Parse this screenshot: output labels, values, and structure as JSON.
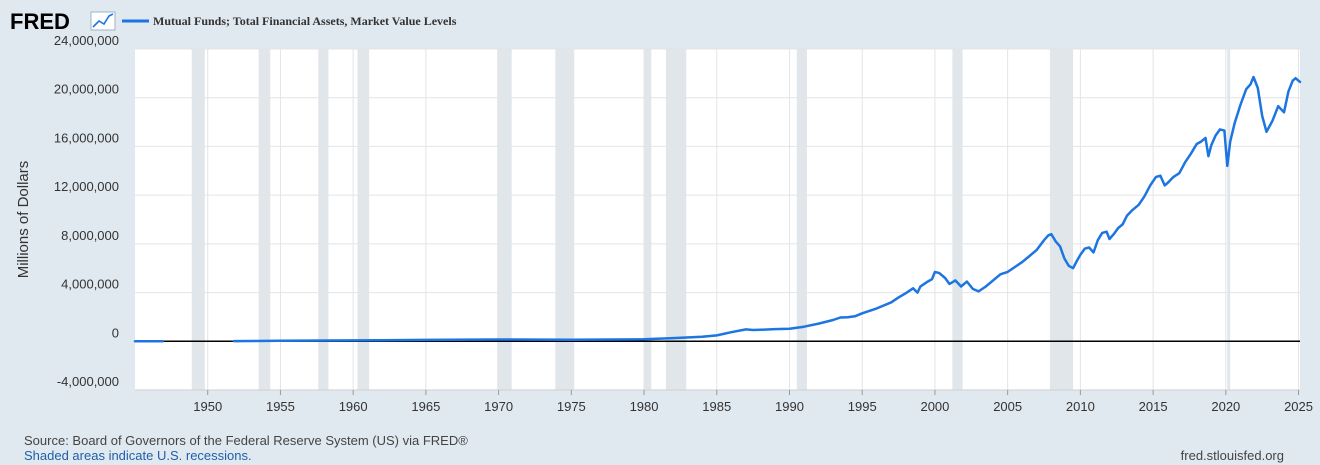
{
  "header": {
    "logo_text": "FRED",
    "logo_icon": "line-chart-icon",
    "legend_label": "Mutual Funds; Total Financial Assets, Market Value Levels",
    "series_color": "#1c75e1"
  },
  "footer": {
    "source": "Source: Board of Governors of the Federal Reserve System (US) via FRED®",
    "recession_note": "Shaded areas indicate U.S. recessions.",
    "url": "fred.stlouisfed.org"
  },
  "chart_data": {
    "type": "line",
    "title": "",
    "xlabel": "",
    "ylabel": "Millions of Dollars",
    "xlim": [
      1945.0,
      2025.1
    ],
    "ylim": [
      -4000000,
      24000000
    ],
    "grid": true,
    "legend": "top-left",
    "background": "#ffffff",
    "recession_color": "#e1e6ea",
    "x_ticks": [
      1950,
      1955,
      1960,
      1965,
      1970,
      1975,
      1980,
      1985,
      1990,
      1995,
      2000,
      2005,
      2010,
      2015,
      2020,
      2025
    ],
    "x_tick_labels": [
      "1950",
      "1955",
      "1960",
      "1965",
      "1970",
      "1975",
      "1980",
      "1985",
      "1990",
      "1995",
      "2000",
      "2005",
      "2010",
      "2015",
      "2020",
      "2025"
    ],
    "y_ticks": [
      -4000000,
      0,
      4000000,
      8000000,
      12000000,
      16000000,
      20000000,
      24000000
    ],
    "y_tick_labels": [
      "-4,000,000",
      "0",
      "4,000,000",
      "8,000,000",
      "12,000,000",
      "16,000,000",
      "20,000,000",
      "24,000,000"
    ],
    "recessions": [
      [
        1948.9,
        1949.8
      ],
      [
        1953.5,
        1954.3
      ],
      [
        1957.6,
        1958.3
      ],
      [
        1960.3,
        1961.1
      ],
      [
        1969.9,
        1970.9
      ],
      [
        1973.9,
        1975.2
      ],
      [
        1980.0,
        1980.5
      ],
      [
        1981.5,
        1982.9
      ],
      [
        1990.5,
        1991.2
      ],
      [
        2001.2,
        2001.9
      ],
      [
        2007.9,
        2009.5
      ],
      [
        2020.1,
        2020.3
      ]
    ],
    "series": [
      {
        "name": "Mutual Funds; Total Financial Assets, Market Value Levels",
        "color": "#1c75e1",
        "segments": [
          {
            "x": [
              1945.0,
              1946.0,
              1946.9
            ],
            "y": [
              8000,
              9000,
              9000
            ]
          },
          {
            "x": [
              1951.8,
              1955,
              1960,
              1965,
              1970,
              1975,
              1980,
              1982,
              1984,
              1985,
              1986,
              1987.0,
              1987.5,
              1988,
              1989,
              1990,
              1991,
              1992,
              1993,
              1993.5,
              1994,
              1994.5,
              1995,
              1996,
              1997,
              1997.5,
              1998,
              1998.5,
              1998.8,
              1999,
              1999.5,
              1999.8,
              2000.0,
              2000.3,
              2000.7,
              2001.0,
              2001.4,
              2001.8,
              2002.2,
              2002.6,
              2003.0,
              2003.5,
              2004.0,
              2004.5,
              2005.0,
              2005.5,
              2006.0,
              2006.5,
              2007.0,
              2007.5,
              2007.8,
              2008.0,
              2008.3,
              2008.6,
              2008.9,
              2009.2,
              2009.5,
              2009.8,
              2010.0,
              2010.3,
              2010.6,
              2010.9,
              2011.2,
              2011.5,
              2011.8,
              2012.0,
              2012.3,
              2012.6,
              2012.9,
              2013.2,
              2013.6,
              2014.0,
              2014.4,
              2014.8,
              2015.2,
              2015.5,
              2015.8,
              2016.0,
              2016.4,
              2016.8,
              2017.2,
              2017.6,
              2018.0,
              2018.3,
              2018.6,
              2018.8,
              2019.0,
              2019.3,
              2019.6,
              2019.9,
              2020.1,
              2020.3,
              2020.6,
              2021.0,
              2021.4,
              2021.7,
              2021.9,
              2022.2,
              2022.5,
              2022.8,
              2023.2,
              2023.6,
              2024.0,
              2024.3,
              2024.6,
              2024.8,
              2025.1
            ],
            "y": [
              12000,
              40000,
              70000,
              110000,
              150000,
              120000,
              160000,
              260000,
              370000,
              480000,
              750000,
              980000,
              930000,
              940000,
              1000000,
              1030000,
              1200000,
              1450000,
              1750000,
              1950000,
              1970000,
              2050000,
              2300000,
              2700000,
              3200000,
              3600000,
              3950000,
              4350000,
              4000000,
              4500000,
              4900000,
              5100000,
              5700000,
              5600000,
              5200000,
              4700000,
              5000000,
              4500000,
              4900000,
              4300000,
              4100000,
              4500000,
              5000000,
              5500000,
              5700000,
              6100000,
              6500000,
              7000000,
              7500000,
              8300000,
              8700000,
              8800000,
              8200000,
              7800000,
              6800000,
              6200000,
              6000000,
              6700000,
              7100000,
              7600000,
              7700000,
              7300000,
              8300000,
              8900000,
              9000000,
              8400000,
              8800000,
              9300000,
              9600000,
              10300000,
              10800000,
              11200000,
              11900000,
              12800000,
              13500000,
              13600000,
              12800000,
              13000000,
              13500000,
              13800000,
              14700000,
              15400000,
              16200000,
              16400000,
              16700000,
              15200000,
              16100000,
              16900000,
              17400000,
              17300000,
              14400000,
              16400000,
              17900000,
              19400000,
              20700000,
              21100000,
              21700000,
              20800000,
              18500000,
              17200000,
              18100000,
              19300000,
              18800000,
              20500000,
              21400000,
              21600000,
              21300000
            ]
          }
        ]
      }
    ]
  }
}
